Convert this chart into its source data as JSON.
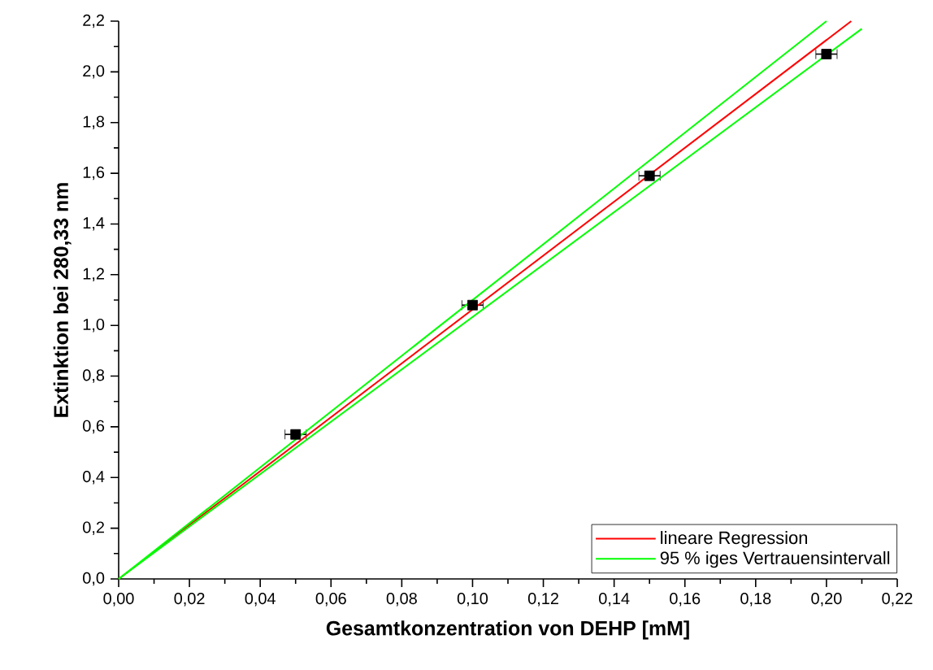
{
  "chart_data": {
    "type": "scatter",
    "xlabel": "Gesamtkonzentration von DEHP  [mM]",
    "ylabel": "Extinktion bei 280,33 nm",
    "xlim": [
      0,
      0.22
    ],
    "ylim": [
      0,
      2.2
    ],
    "xticks": [
      {
        "value": 0,
        "label": "0,00"
      },
      {
        "value": 0.02,
        "label": "0,02"
      },
      {
        "value": 0.04,
        "label": "0,04"
      },
      {
        "value": 0.06,
        "label": "0,06"
      },
      {
        "value": 0.08,
        "label": "0,08"
      },
      {
        "value": 0.1,
        "label": "0,10"
      },
      {
        "value": 0.12,
        "label": "0,12"
      },
      {
        "value": 0.14,
        "label": "0,14"
      },
      {
        "value": 0.16,
        "label": "0,16"
      },
      {
        "value": 0.18,
        "label": "0,18"
      },
      {
        "value": 0.2,
        "label": "0,20"
      },
      {
        "value": 0.22,
        "label": "0,22"
      }
    ],
    "yticks": [
      {
        "value": 0,
        "label": "0,0"
      },
      {
        "value": 0.2,
        "label": "0,2"
      },
      {
        "value": 0.4,
        "label": "0,4"
      },
      {
        "value": 0.6,
        "label": "0,6"
      },
      {
        "value": 0.8,
        "label": "0,8"
      },
      {
        "value": 1.0,
        "label": "1,0"
      },
      {
        "value": 1.2,
        "label": "1,2"
      },
      {
        "value": 1.4,
        "label": "1,4"
      },
      {
        "value": 1.6,
        "label": "1,6"
      },
      {
        "value": 1.8,
        "label": "1,8"
      },
      {
        "value": 2.0,
        "label": "2,0"
      },
      {
        "value": 2.2,
        "label": "2,2"
      }
    ],
    "legend": "bottom right",
    "grid": false,
    "series": [
      {
        "color": "#000000",
        "marker": "square",
        "x": [
          0.05,
          0.1,
          0.15,
          0.2
        ],
        "values": [
          0.57,
          1.08,
          1.59,
          2.07
        ],
        "xerrors": [
          0.003,
          0.003,
          0.003,
          0.003
        ],
        "errors": [
          0.01,
          0.01,
          0.01,
          0.01
        ]
      },
      {
        "type": "line",
        "name": "lineare Regression",
        "color": "#ff0000",
        "x": [
          0,
          0.207
        ],
        "values": [
          0,
          2.2
        ]
      },
      {
        "type": "line",
        "name": "95 % iges Vertrauensintervall",
        "color": "#00ff00",
        "x": [
          0,
          0.2
        ],
        "values": [
          0,
          2.2
        ]
      },
      {
        "type": "line",
        "color": "#00ff00",
        "x": [
          0,
          0.21
        ],
        "values": [
          0,
          2.17
        ]
      }
    ]
  }
}
